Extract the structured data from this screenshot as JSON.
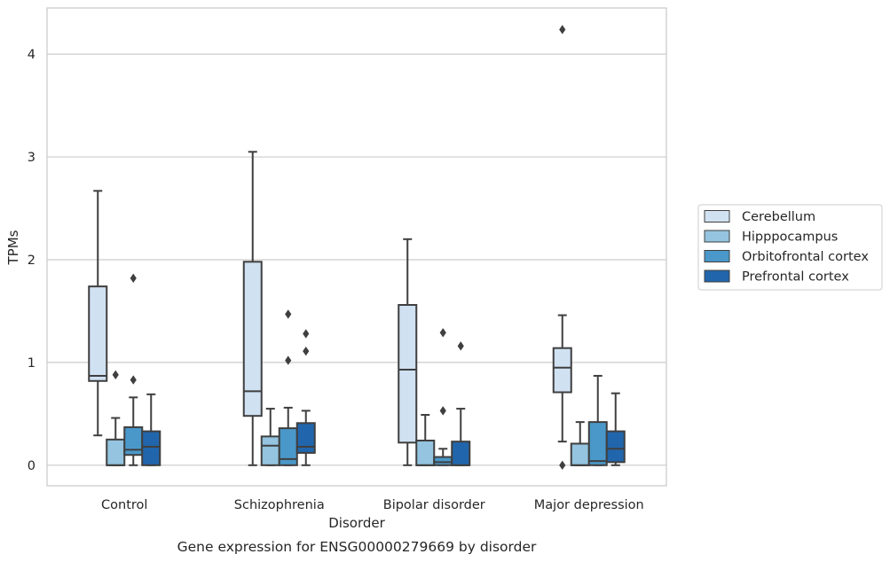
{
  "caption": "Gene expression for ENSG00000279669 by disorder",
  "colors": {
    "grid": "#cccccc",
    "frame": "#cccccc",
    "box_edge": "#3f3f3f",
    "series": [
      "#d0e1f2",
      "#94c4df",
      "#4a98c9",
      "#2166ac"
    ]
  },
  "chart_data": {
    "type": "box",
    "xlabel": "Disorder",
    "ylabel": "TPMs",
    "ylim": [
      -0.2,
      4.45
    ],
    "yticks": [
      0,
      1,
      2,
      3,
      4
    ],
    "grid": "horizontal",
    "legend_position": "right, outside plot",
    "categories": [
      "Control",
      "Schizophrenia",
      "Bipolar disorder",
      "Major depression"
    ],
    "series": [
      {
        "name": "Cerebellum",
        "boxes": [
          {
            "whislo": 0.29,
            "q1": 0.82,
            "med": 0.87,
            "q3": 1.74,
            "whishi": 2.67,
            "fliers": []
          },
          {
            "whislo": 0.0,
            "q1": 0.48,
            "med": 0.72,
            "q3": 1.98,
            "whishi": 3.05,
            "fliers": []
          },
          {
            "whislo": 0.0,
            "q1": 0.22,
            "med": 0.93,
            "q3": 1.56,
            "whishi": 2.2,
            "fliers": []
          },
          {
            "whislo": 0.23,
            "q1": 0.71,
            "med": 0.95,
            "q3": 1.14,
            "whishi": 1.46,
            "fliers": [
              4.24,
              0.0
            ]
          }
        ]
      },
      {
        "name": "Hipppocampus",
        "boxes": [
          {
            "whislo": 0.0,
            "q1": 0.0,
            "med": 0.0,
            "q3": 0.25,
            "whishi": 0.46,
            "fliers": [
              0.88
            ]
          },
          {
            "whislo": 0.0,
            "q1": 0.0,
            "med": 0.19,
            "q3": 0.28,
            "whishi": 0.55,
            "fliers": []
          },
          {
            "whislo": 0.0,
            "q1": 0.0,
            "med": 0.0,
            "q3": 0.24,
            "whishi": 0.49,
            "fliers": []
          },
          {
            "whislo": 0.0,
            "q1": 0.0,
            "med": 0.0,
            "q3": 0.21,
            "whishi": 0.42,
            "fliers": []
          }
        ]
      },
      {
        "name": "Orbitofrontal cortex",
        "boxes": [
          {
            "whislo": 0.0,
            "q1": 0.1,
            "med": 0.15,
            "q3": 0.37,
            "whishi": 0.66,
            "fliers": [
              1.82,
              0.83
            ]
          },
          {
            "whislo": 0.0,
            "q1": 0.0,
            "med": 0.06,
            "q3": 0.36,
            "whishi": 0.56,
            "fliers": [
              1.47,
              1.02
            ]
          },
          {
            "whislo": 0.0,
            "q1": 0.0,
            "med": 0.03,
            "q3": 0.08,
            "whishi": 0.16,
            "fliers": [
              1.29,
              0.53
            ]
          },
          {
            "whislo": 0.0,
            "q1": 0.0,
            "med": 0.04,
            "q3": 0.42,
            "whishi": 0.87,
            "fliers": []
          }
        ]
      },
      {
        "name": "Prefrontal cortex",
        "boxes": [
          {
            "whislo": 0.0,
            "q1": 0.0,
            "med": 0.18,
            "q3": 0.33,
            "whishi": 0.69,
            "fliers": []
          },
          {
            "whislo": 0.0,
            "q1": 0.12,
            "med": 0.18,
            "q3": 0.41,
            "whishi": 0.53,
            "fliers": [
              1.28,
              1.11
            ]
          },
          {
            "whislo": 0.0,
            "q1": 0.0,
            "med": 0.0,
            "q3": 0.23,
            "whishi": 0.55,
            "fliers": [
              1.16
            ]
          },
          {
            "whislo": 0.0,
            "q1": 0.03,
            "med": 0.16,
            "q3": 0.33,
            "whishi": 0.7,
            "fliers": []
          }
        ]
      }
    ]
  }
}
